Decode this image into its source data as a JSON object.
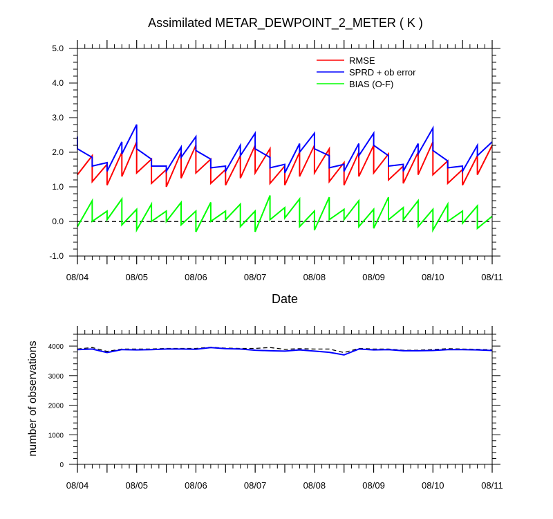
{
  "chart_data": [
    {
      "type": "line",
      "title": "Assimilated METAR_DEWPOINT_2_METER ( K )",
      "xlabel": "Date",
      "ylabel": "",
      "x_tick_labels": [
        "08/04",
        "08/05",
        "08/06",
        "08/07",
        "08/08",
        "08/09",
        "08/10",
        "08/11"
      ],
      "xlim": [
        "08/04",
        "08/11"
      ],
      "ylim": [
        -1.0,
        5.0
      ],
      "y_ticks": [
        -1.0,
        0.0,
        1.0,
        2.0,
        3.0,
        4.0,
        5.0
      ],
      "y_tick_labels": [
        "-1.0",
        "0.0",
        "1.0",
        "2.0",
        "3.0",
        "4.0",
        "5.0"
      ],
      "reference_line": {
        "y": 0.0,
        "style": "dashed",
        "color": "#000000"
      },
      "legend_position": "top-right",
      "series": [
        {
          "name": "RMSE",
          "color": "#ff0000",
          "points": [
            [
              "08/04 00:00",
              1.35
            ],
            [
              "08/04 06:00",
              1.9
            ],
            [
              "08/04 06:00",
              1.15
            ],
            [
              "08/04 12:00",
              1.65
            ],
            [
              "08/04 12:00",
              1.05
            ],
            [
              "08/04 18:00",
              2.0
            ],
            [
              "08/04 18:00",
              1.3
            ],
            [
              "08/05 00:00",
              2.3
            ],
            [
              "08/05 00:00",
              1.4
            ],
            [
              "08/05 06:00",
              1.8
            ],
            [
              "08/05 06:00",
              1.1
            ],
            [
              "08/05 12:00",
              1.5
            ],
            [
              "08/05 12:00",
              1.0
            ],
            [
              "08/05 18:00",
              2.0
            ],
            [
              "08/05 18:00",
              1.25
            ],
            [
              "08/06 00:00",
              2.2
            ],
            [
              "08/06 00:00",
              1.4
            ],
            [
              "08/06 06:00",
              1.8
            ],
            [
              "08/06 06:00",
              1.1
            ],
            [
              "08/06 12:00",
              1.5
            ],
            [
              "08/06 12:00",
              1.05
            ],
            [
              "08/06 18:00",
              1.9
            ],
            [
              "08/06 18:00",
              1.25
            ],
            [
              "08/07 00:00",
              2.2
            ],
            [
              "08/07 00:00",
              1.4
            ],
            [
              "08/07 06:00",
              2.1
            ],
            [
              "08/07 06:00",
              1.1
            ],
            [
              "08/07 12:00",
              1.6
            ],
            [
              "08/07 12:00",
              1.05
            ],
            [
              "08/07 18:00",
              2.0
            ],
            [
              "08/07 18:00",
              1.3
            ],
            [
              "08/08 00:00",
              2.2
            ],
            [
              "08/08 00:00",
              1.4
            ],
            [
              "08/08 06:00",
              2.1
            ],
            [
              "08/08 06:00",
              1.15
            ],
            [
              "08/08 12:00",
              1.7
            ],
            [
              "08/08 12:00",
              1.05
            ],
            [
              "08/08 18:00",
              2.0
            ],
            [
              "08/08 18:00",
              1.3
            ],
            [
              "08/09 00:00",
              2.2
            ],
            [
              "08/09 00:00",
              1.4
            ],
            [
              "08/09 06:00",
              1.95
            ],
            [
              "08/09 06:00",
              1.2
            ],
            [
              "08/09 12:00",
              1.6
            ],
            [
              "08/09 12:00",
              1.1
            ],
            [
              "08/09 18:00",
              2.0
            ],
            [
              "08/09 18:00",
              1.35
            ],
            [
              "08/10 00:00",
              2.3
            ],
            [
              "08/10 00:00",
              1.35
            ],
            [
              "08/10 06:00",
              1.75
            ],
            [
              "08/10 06:00",
              1.1
            ],
            [
              "08/10 12:00",
              1.5
            ],
            [
              "08/10 12:00",
              1.05
            ],
            [
              "08/10 18:00",
              1.9
            ],
            [
              "08/10 18:00",
              1.35
            ],
            [
              "08/11 00:00",
              2.2
            ]
          ]
        },
        {
          "name": "SPRD + ob error",
          "color": "#0000ff",
          "points": [
            [
              "08/04 00:00",
              2.45
            ],
            [
              "08/04 00:00",
              2.1
            ],
            [
              "08/04 06:00",
              1.85
            ],
            [
              "08/04 06:00",
              1.6
            ],
            [
              "08/04 12:00",
              1.7
            ],
            [
              "08/04 12:00",
              1.45
            ],
            [
              "08/04 18:00",
              2.3
            ],
            [
              "08/04 18:00",
              1.95
            ],
            [
              "08/05 00:00",
              2.8
            ],
            [
              "08/05 00:00",
              2.1
            ],
            [
              "08/05 06:00",
              1.8
            ],
            [
              "08/05 06:00",
              1.6
            ],
            [
              "08/05 12:00",
              1.6
            ],
            [
              "08/05 12:00",
              1.45
            ],
            [
              "08/05 18:00",
              2.15
            ],
            [
              "08/05 18:00",
              1.85
            ],
            [
              "08/06 00:00",
              2.45
            ],
            [
              "08/06 00:00",
              2.05
            ],
            [
              "08/06 06:00",
              1.8
            ],
            [
              "08/06 06:00",
              1.55
            ],
            [
              "08/06 12:00",
              1.6
            ],
            [
              "08/06 12:00",
              1.45
            ],
            [
              "08/06 18:00",
              2.2
            ],
            [
              "08/06 18:00",
              1.9
            ],
            [
              "08/07 00:00",
              2.55
            ],
            [
              "08/07 00:00",
              2.1
            ],
            [
              "08/07 06:00",
              1.85
            ],
            [
              "08/07 06:00",
              1.55
            ],
            [
              "08/07 12:00",
              1.65
            ],
            [
              "08/07 12:00",
              1.4
            ],
            [
              "08/07 18:00",
              2.25
            ],
            [
              "08/07 18:00",
              2.0
            ],
            [
              "08/08 00:00",
              2.55
            ],
            [
              "08/08 00:00",
              2.1
            ],
            [
              "08/08 06:00",
              1.9
            ],
            [
              "08/08 06:00",
              1.55
            ],
            [
              "08/08 12:00",
              1.65
            ],
            [
              "08/08 12:00",
              1.45
            ],
            [
              "08/08 18:00",
              2.25
            ],
            [
              "08/08 18:00",
              1.9
            ],
            [
              "08/09 00:00",
              2.55
            ],
            [
              "08/09 00:00",
              2.2
            ],
            [
              "08/09 06:00",
              1.9
            ],
            [
              "08/09 06:00",
              1.6
            ],
            [
              "08/09 12:00",
              1.65
            ],
            [
              "08/09 12:00",
              1.45
            ],
            [
              "08/09 18:00",
              2.25
            ],
            [
              "08/09 18:00",
              1.95
            ],
            [
              "08/10 00:00",
              2.7
            ],
            [
              "08/10 00:00",
              2.05
            ],
            [
              "08/10 06:00",
              1.75
            ],
            [
              "08/10 06:00",
              1.55
            ],
            [
              "08/10 12:00",
              1.6
            ],
            [
              "08/10 12:00",
              1.45
            ],
            [
              "08/10 18:00",
              2.2
            ],
            [
              "08/10 18:00",
              1.9
            ],
            [
              "08/11 00:00",
              2.3
            ]
          ]
        },
        {
          "name": "BIAS (O-F)",
          "color": "#00ff00",
          "points": [
            [
              "08/04 00:00",
              -0.15
            ],
            [
              "08/04 06:00",
              0.6
            ],
            [
              "08/04 06:00",
              0.0
            ],
            [
              "08/04 12:00",
              0.3
            ],
            [
              "08/04 12:00",
              0.05
            ],
            [
              "08/04 18:00",
              0.65
            ],
            [
              "08/04 18:00",
              -0.1
            ],
            [
              "08/05 00:00",
              0.35
            ],
            [
              "08/05 00:00",
              -0.25
            ],
            [
              "08/05 06:00",
              0.5
            ],
            [
              "08/05 06:00",
              0.0
            ],
            [
              "08/05 12:00",
              0.3
            ],
            [
              "08/05 12:00",
              0.0
            ],
            [
              "08/05 18:00",
              0.55
            ],
            [
              "08/05 18:00",
              -0.1
            ],
            [
              "08/06 00:00",
              0.3
            ],
            [
              "08/06 00:00",
              -0.3
            ],
            [
              "08/06 06:00",
              0.55
            ],
            [
              "08/06 06:00",
              0.0
            ],
            [
              "08/06 12:00",
              0.3
            ],
            [
              "08/06 12:00",
              0.05
            ],
            [
              "08/06 18:00",
              0.5
            ],
            [
              "08/06 18:00",
              -0.15
            ],
            [
              "08/07 00:00",
              0.3
            ],
            [
              "08/07 00:00",
              -0.3
            ],
            [
              "08/07 06:00",
              0.75
            ],
            [
              "08/07 06:00",
              0.05
            ],
            [
              "08/07 12:00",
              0.4
            ],
            [
              "08/07 12:00",
              0.1
            ],
            [
              "08/07 18:00",
              0.65
            ],
            [
              "08/07 18:00",
              -0.15
            ],
            [
              "08/08 00:00",
              0.3
            ],
            [
              "08/08 00:00",
              -0.25
            ],
            [
              "08/08 06:00",
              0.7
            ],
            [
              "08/08 06:00",
              0.05
            ],
            [
              "08/08 12:00",
              0.35
            ],
            [
              "08/08 12:00",
              0.05
            ],
            [
              "08/08 18:00",
              0.6
            ],
            [
              "08/08 18:00",
              -0.15
            ],
            [
              "08/09 00:00",
              0.35
            ],
            [
              "08/09 00:00",
              -0.2
            ],
            [
              "08/09 06:00",
              0.7
            ],
            [
              "08/09 06:00",
              0.05
            ],
            [
              "08/09 12:00",
              0.4
            ],
            [
              "08/09 12:00",
              0.05
            ],
            [
              "08/09 18:00",
              0.6
            ],
            [
              "08/09 18:00",
              -0.15
            ],
            [
              "08/10 00:00",
              0.35
            ],
            [
              "08/10 00:00",
              -0.25
            ],
            [
              "08/10 06:00",
              0.5
            ],
            [
              "08/10 06:00",
              0.0
            ],
            [
              "08/10 12:00",
              0.3
            ],
            [
              "08/10 12:00",
              -0.05
            ],
            [
              "08/10 18:00",
              0.45
            ],
            [
              "08/10 18:00",
              -0.2
            ],
            [
              "08/11 00:00",
              0.15
            ]
          ]
        }
      ]
    },
    {
      "type": "line",
      "title": "",
      "xlabel": "",
      "ylabel": "number of observations",
      "x_tick_labels": [
        "08/04",
        "08/05",
        "08/06",
        "08/07",
        "08/08",
        "08/09",
        "08/10",
        "08/11"
      ],
      "xlim": [
        "08/04",
        "08/11"
      ],
      "ylim": [
        0,
        4400
      ],
      "y_ticks": [
        0,
        1000,
        2000,
        3000,
        4000
      ],
      "y_tick_labels": [
        "0",
        "1000",
        "2000",
        "3000",
        "4000"
      ],
      "series": [
        {
          "color": "#000000",
          "style": "dashed",
          "points": [
            [
              "08/04 00:00",
              3900
            ],
            [
              "08/04 06:00",
              3950
            ],
            [
              "08/04 12:00",
              3820
            ],
            [
              "08/04 18:00",
              3900
            ],
            [
              "08/05 00:00",
              3900
            ],
            [
              "08/05 06:00",
              3900
            ],
            [
              "08/05 12:00",
              3920
            ],
            [
              "08/05 18:00",
              3920
            ],
            [
              "08/06 00:00",
              3920
            ],
            [
              "08/06 06:00",
              3960
            ],
            [
              "08/06 12:00",
              3930
            ],
            [
              "08/06 18:00",
              3920
            ],
            [
              "08/07 00:00",
              3920
            ],
            [
              "08/07 06:00",
              3950
            ],
            [
              "08/07 12:00",
              3890
            ],
            [
              "08/07 18:00",
              3910
            ],
            [
              "08/08 00:00",
              3900
            ],
            [
              "08/08 06:00",
              3900
            ],
            [
              "08/08 12:00",
              3780
            ],
            [
              "08/08 18:00",
              3920
            ],
            [
              "08/09 00:00",
              3900
            ],
            [
              "08/09 06:00",
              3900
            ],
            [
              "08/09 12:00",
              3860
            ],
            [
              "08/09 18:00",
              3860
            ],
            [
              "08/10 00:00",
              3880
            ],
            [
              "08/10 06:00",
              3910
            ],
            [
              "08/10 12:00",
              3900
            ],
            [
              "08/10 18:00",
              3890
            ],
            [
              "08/11 00:00",
              3870
            ]
          ]
        },
        {
          "color": "#0000ff",
          "style": "solid",
          "points": [
            [
              "08/04 00:00",
              3880
            ],
            [
              "08/04 06:00",
              3900
            ],
            [
              "08/04 12:00",
              3780
            ],
            [
              "08/04 18:00",
              3880
            ],
            [
              "08/05 00:00",
              3870
            ],
            [
              "08/05 06:00",
              3880
            ],
            [
              "08/05 12:00",
              3900
            ],
            [
              "08/05 18:00",
              3900
            ],
            [
              "08/06 00:00",
              3890
            ],
            [
              "08/06 06:00",
              3950
            ],
            [
              "08/06 12:00",
              3910
            ],
            [
              "08/06 18:00",
              3900
            ],
            [
              "08/07 00:00",
              3860
            ],
            [
              "08/07 06:00",
              3840
            ],
            [
              "08/07 12:00",
              3830
            ],
            [
              "08/07 18:00",
              3870
            ],
            [
              "08/08 00:00",
              3830
            ],
            [
              "08/08 06:00",
              3790
            ],
            [
              "08/08 12:00",
              3700
            ],
            [
              "08/08 18:00",
              3900
            ],
            [
              "08/09 00:00",
              3870
            ],
            [
              "08/09 06:00",
              3880
            ],
            [
              "08/09 12:00",
              3840
            ],
            [
              "08/09 18:00",
              3840
            ],
            [
              "08/10 00:00",
              3850
            ],
            [
              "08/10 06:00",
              3880
            ],
            [
              "08/10 12:00",
              3880
            ],
            [
              "08/10 18:00",
              3870
            ],
            [
              "08/11 00:00",
              3850
            ]
          ]
        }
      ]
    }
  ]
}
